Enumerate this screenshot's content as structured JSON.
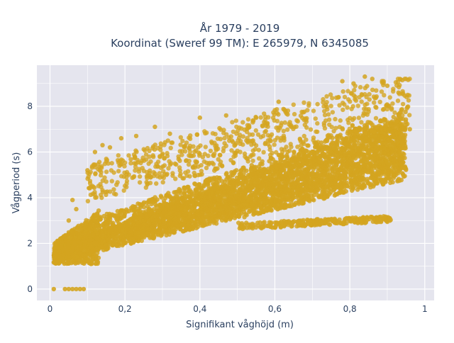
{
  "chart_data": {
    "type": "scatter",
    "title_lines": [
      "År 1979 - 2019",
      "Koordinat (Sweref 99 TM): E 265979, N 6345085"
    ],
    "xlabel": "Signifikant våghöjd (m)",
    "ylabel": "Vågperiod (s)",
    "xlim": [
      -0.035,
      1.025
    ],
    "ylim": [
      -0.5,
      9.8
    ],
    "x_ticks": [
      0,
      0.2,
      0.4,
      0.6,
      0.8,
      1
    ],
    "x_tick_labels": [
      "0",
      "0,2",
      "0,4",
      "0,6",
      "0,8",
      "1"
    ],
    "y_ticks": [
      0,
      2,
      4,
      6,
      8
    ],
    "y_tick_labels": [
      "0",
      "2",
      "4",
      "6",
      "8"
    ],
    "grid": true,
    "marker_color": "#d4a520",
    "plot_background": "#e5e5ee",
    "point_count_estimate": "dense cloud (~hundreds of thousands of hourly observations)",
    "bands": [
      {
        "x_start": 0.01,
        "x_end": 0.95,
        "y_low_start": 1.2,
        "y_low_end": 4.8,
        "y_high_start": 1.8,
        "y_high_end": 7.6
      },
      {
        "x_start": 0.1,
        "x_end": 0.95,
        "y_low_start": 1.7,
        "y_low_end": 5.2,
        "y_high_start": 3.0,
        "y_high_end": 7.8
      },
      {
        "x_start": 0.5,
        "x_end": 0.91,
        "y_low_start": 2.6,
        "y_low_end": 2.95,
        "y_high_start": 2.9,
        "y_high_end": 3.2
      }
    ],
    "zero_points_x": [
      0.01,
      0.04,
      0.05,
      0.06,
      0.07,
      0.08,
      0.09
    ],
    "outlier_points": [
      [
        0.1,
        5.2
      ],
      [
        0.12,
        6.0
      ],
      [
        0.14,
        6.3
      ],
      [
        0.16,
        6.2
      ],
      [
        0.19,
        6.6
      ],
      [
        0.23,
        6.7
      ],
      [
        0.28,
        7.1
      ],
      [
        0.32,
        6.8
      ],
      [
        0.4,
        7.5
      ],
      [
        0.47,
        7.6
      ],
      [
        0.55,
        7.5
      ],
      [
        0.61,
        8.2
      ],
      [
        0.78,
        9.1
      ],
      [
        0.81,
        9.0
      ],
      [
        0.84,
        9.3
      ],
      [
        0.86,
        9.2
      ],
      [
        0.89,
        9.1
      ],
      [
        0.9,
        8.9
      ],
      [
        0.93,
        8.6
      ],
      [
        0.95,
        7.2
      ],
      [
        0.96,
        7.0
      ],
      [
        0.06,
        3.9
      ],
      [
        0.07,
        3.5
      ],
      [
        0.05,
        3.0
      ]
    ]
  }
}
